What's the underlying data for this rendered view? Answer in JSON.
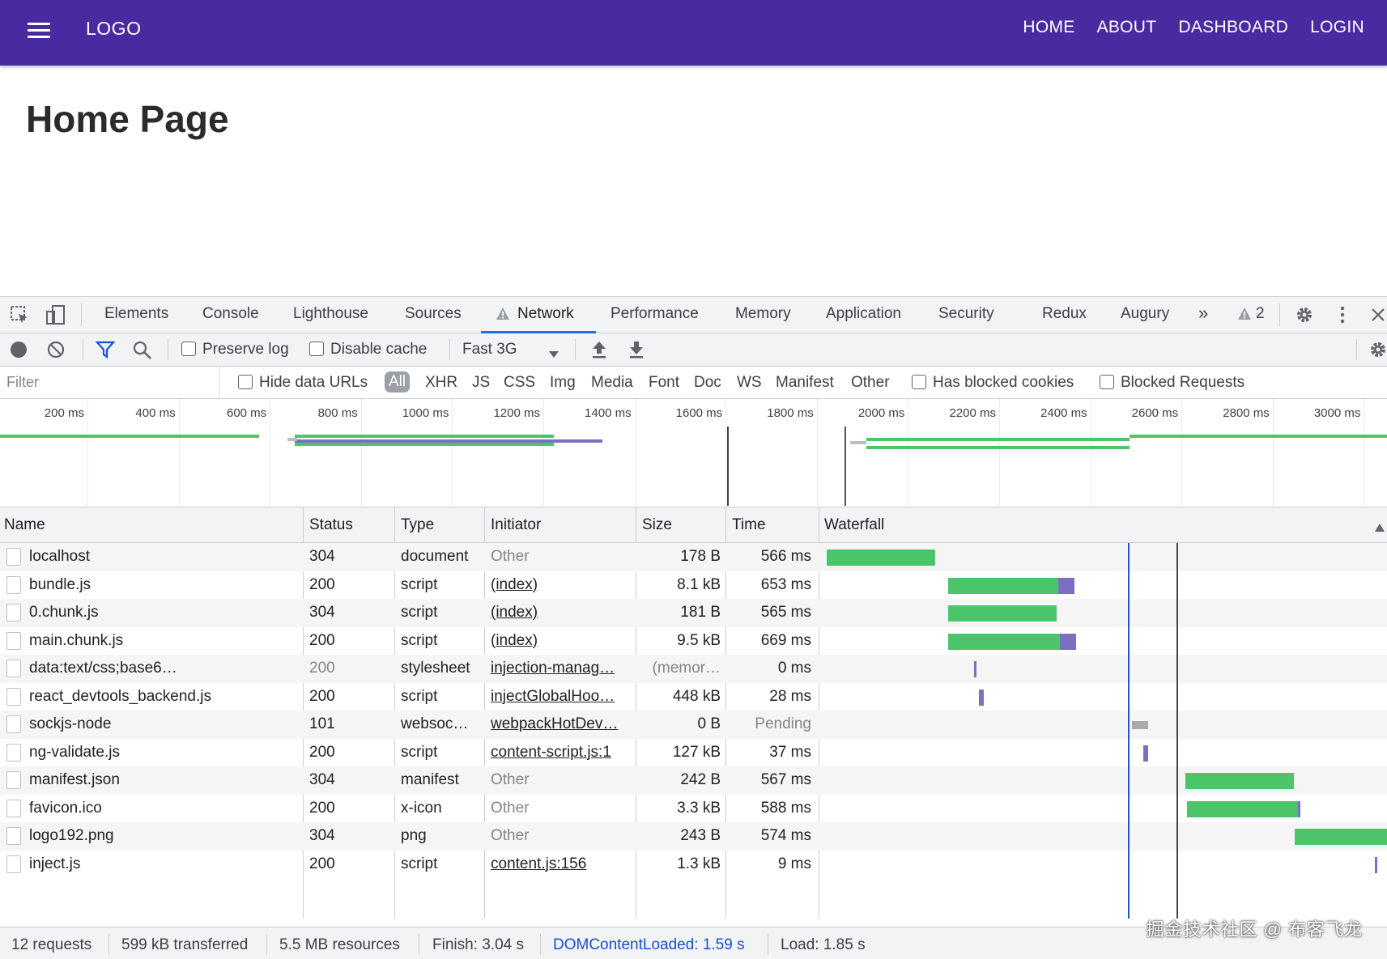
{
  "app": {
    "logo": "LOGO",
    "nav": [
      "HOME",
      "ABOUT",
      "DASHBOARD",
      "LOGIN"
    ],
    "page_title": "Home Page"
  },
  "devtools": {
    "tabs": [
      "Elements",
      "Console",
      "Lighthouse",
      "Sources",
      "Network",
      "Performance",
      "Memory",
      "Application",
      "Security",
      "Redux",
      "Augury"
    ],
    "active_tab": "Network",
    "more_tabs": "»",
    "warnings_count": "2",
    "toolbar": {
      "preserve_log": "Preserve log",
      "disable_cache": "Disable cache",
      "throttle": "Fast 3G"
    },
    "filter": {
      "placeholder": "Filter",
      "hide_data_urls": "Hide data URLs",
      "types": [
        "All",
        "XHR",
        "JS",
        "CSS",
        "Img",
        "Media",
        "Font",
        "Doc",
        "WS",
        "Manifest",
        "Other"
      ],
      "has_blocked_cookies": "Has blocked cookies",
      "blocked_requests": "Blocked Requests"
    },
    "overview_ticks": [
      "200 ms",
      "400 ms",
      "600 ms",
      "800 ms",
      "1000 ms",
      "1200 ms",
      "1400 ms",
      "1600 ms",
      "1800 ms",
      "2000 ms",
      "2200 ms",
      "2400 ms",
      "2600 ms",
      "2800 ms",
      "3000 ms"
    ],
    "columns": [
      "Name",
      "Status",
      "Type",
      "Initiator",
      "Size",
      "Time",
      "Waterfall"
    ],
    "requests": [
      {
        "name": "localhost",
        "status": "304",
        "type": "document",
        "initiator": "Other",
        "size": "178 B",
        "time": "566 ms"
      },
      {
        "name": "bundle.js",
        "status": "200",
        "type": "script",
        "initiator": "(index)",
        "size": "8.1 kB",
        "time": "653 ms"
      },
      {
        "name": "0.chunk.js",
        "status": "304",
        "type": "script",
        "initiator": "(index)",
        "size": "181 B",
        "time": "565 ms"
      },
      {
        "name": "main.chunk.js",
        "status": "200",
        "type": "script",
        "initiator": "(index)",
        "size": "9.5 kB",
        "time": "669 ms"
      },
      {
        "name": "data:text/css;base6…",
        "status": "200",
        "type": "stylesheet",
        "initiator": "injection-manag…",
        "size": "(memor…",
        "time": "0 ms"
      },
      {
        "name": "react_devtools_backend.js",
        "status": "200",
        "type": "script",
        "initiator": "injectGlobalHoo…",
        "size": "448 kB",
        "time": "28 ms"
      },
      {
        "name": "sockjs-node",
        "status": "101",
        "type": "websoc…",
        "initiator": "webpackHotDev…",
        "size": "0 B",
        "time": "Pending"
      },
      {
        "name": "ng-validate.js",
        "status": "200",
        "type": "script",
        "initiator": "content-script.js:1",
        "size": "127 kB",
        "time": "37 ms"
      },
      {
        "name": "manifest.json",
        "status": "304",
        "type": "manifest",
        "initiator": "Other",
        "size": "242 B",
        "time": "567 ms"
      },
      {
        "name": "favicon.ico",
        "status": "200",
        "type": "x-icon",
        "initiator": "Other",
        "size": "3.3 kB",
        "time": "588 ms"
      },
      {
        "name": "logo192.png",
        "status": "304",
        "type": "png",
        "initiator": "Other",
        "size": "243 B",
        "time": "574 ms"
      },
      {
        "name": "inject.js",
        "status": "200",
        "type": "script",
        "initiator": "content.js:156",
        "size": "1.3 kB",
        "time": "9 ms"
      }
    ],
    "status": {
      "requests": "12 requests",
      "transferred": "599 kB transferred",
      "resources": "5.5 MB resources",
      "finish": "Finish: 3.04 s",
      "dom_content_loaded": "DOMContentLoaded: 1.59 s",
      "load": "Load: 1.85 s"
    },
    "watermark": "掘金技术社区 @ 布客飞龙"
  },
  "colors": {
    "appbar": "#4a2aa0",
    "waiting_bar": "#4cc56a",
    "download_bar": "#7b6fc2",
    "dcl_line": "#1a4fd0"
  }
}
